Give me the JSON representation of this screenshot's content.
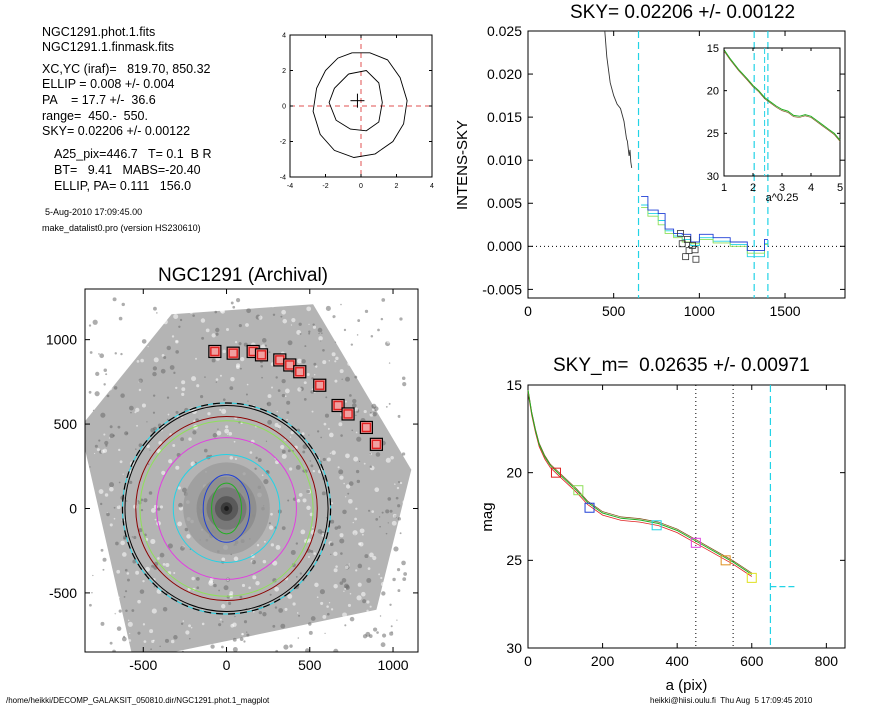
{
  "info": {
    "phot_file": "NGC1291.phot.1.fits",
    "mask_file": "NGC1291.1.finmask.fits",
    "xcyc": "XC,YC (iraf)=   819.70, 850.32",
    "ellip": "ELLIP = 0.008 +/- 0.004",
    "pa": "PA    = 17.7 +/-  36.6",
    "range": "range=  450.-  550.",
    "sky": "SKY= 0.02206 +/- 0.00122",
    "a25": "A25_pix=446.7   T= 0.1  B R",
    "bt": "BT=   9.41   MABS=-20.40",
    "ellip_pa": "ELLIP, PA= 0.111   156.0",
    "date": "5-Aug-2010 17:09:45.00",
    "program": "make_datalist0.pro (version HS230610)"
  },
  "footer": {
    "path": "/home/heikki/DECOMP_GALAKSIT_050810.dir/NGC1291.phot.1_magplot",
    "user": "heikki@hiisi.oulu.fi  Thu Aug  5 17:09:45 2010"
  },
  "colors": {
    "black": "#000000",
    "cyan": "#22d3e6",
    "blue": "#1f3fd6",
    "green": "#22b022",
    "lightgreen": "#8fe05a",
    "magenta": "#e040e0",
    "red": "#e02020",
    "darkred": "#8b0000",
    "orange": "#e09020",
    "pink": "#ff8080",
    "gray": "#808080"
  },
  "chart_data": [
    {
      "id": "center_plot",
      "type": "line",
      "xlim": [
        -4,
        4
      ],
      "ylim": [
        -4,
        4
      ],
      "xticks": [
        -4,
        -2,
        0,
        2,
        4
      ],
      "yticks": [
        -4,
        -2,
        0,
        2,
        4
      ],
      "crosshair_x": 0,
      "crosshair_y": 0,
      "center_marker": [
        -0.2,
        0.3
      ],
      "contours": [
        [
          [
            -0.5,
            3.0
          ],
          [
            0.5,
            3.0
          ],
          [
            1.5,
            2.6
          ],
          [
            2.2,
            1.6
          ],
          [
            2.6,
            0.3
          ],
          [
            2.4,
            -1.0
          ],
          [
            1.8,
            -2.0
          ],
          [
            0.8,
            -2.7
          ],
          [
            -0.4,
            -2.9
          ],
          [
            -1.5,
            -2.5
          ],
          [
            -2.3,
            -1.6
          ],
          [
            -2.7,
            -0.3
          ],
          [
            -2.5,
            1.0
          ],
          [
            -2.0,
            2.0
          ],
          [
            -1.3,
            2.7
          ],
          [
            -0.5,
            3.0
          ]
        ],
        [
          [
            -0.7,
            1.8
          ],
          [
            0.3,
            2.0
          ],
          [
            1.0,
            1.3
          ],
          [
            1.2,
            0.2
          ],
          [
            1.0,
            -0.9
          ],
          [
            0.3,
            -1.4
          ],
          [
            -0.6,
            -1.3
          ],
          [
            -1.4,
            -0.8
          ],
          [
            -1.8,
            0.2
          ],
          [
            -1.5,
            1.0
          ],
          [
            -0.7,
            1.8
          ]
        ]
      ]
    },
    {
      "id": "sky_profile",
      "type": "line",
      "title": "SKY= 0.02206 +/- 0.00122",
      "xlabel": "",
      "ylabel": "INTENS-SKY",
      "xlim": [
        0,
        1850
      ],
      "ylim": [
        -0.006,
        0.025
      ],
      "xticks": [
        0,
        500,
        1000,
        1500
      ],
      "yticks": [
        -0.005,
        0.0,
        0.005,
        0.01,
        0.015,
        0.02,
        0.025
      ],
      "ytick_labels": [
        "-0.005",
        "0.000",
        "0.005",
        "0.010",
        "0.015",
        "0.020",
        "0.025"
      ],
      "vlines": [
        645,
        1320,
        1400
      ],
      "intens_curve": [
        [
          448,
          0.025
        ],
        [
          460,
          0.022
        ],
        [
          480,
          0.019
        ],
        [
          500,
          0.0175
        ],
        [
          520,
          0.0165
        ],
        [
          540,
          0.016
        ],
        [
          560,
          0.0145
        ],
        [
          575,
          0.0125
        ],
        [
          580,
          0.0122
        ],
        [
          590,
          0.0105
        ],
        [
          595,
          0.0112
        ],
        [
          600,
          0.0098
        ],
        [
          605,
          0.0091
        ]
      ],
      "sky_steps_blue": [
        [
          660,
          0.0058
        ],
        [
          700,
          0.0042
        ],
        [
          760,
          0.0038
        ],
        [
          800,
          0.002
        ],
        [
          850,
          0.0015
        ],
        [
          900,
          0.0014
        ],
        [
          950,
          0.0005
        ],
        [
          1000,
          0.0014
        ],
        [
          1080,
          0.001
        ],
        [
          1180,
          0.0005
        ],
        [
          1280,
          -0.0005
        ],
        [
          1380,
          0.0008
        ]
      ],
      "sky_steps_green": [
        [
          660,
          0.0045
        ],
        [
          700,
          0.0035
        ],
        [
          760,
          0.0025
        ],
        [
          800,
          0.0015
        ],
        [
          850,
          0.001
        ],
        [
          900,
          0.0005
        ],
        [
          950,
          0.0003
        ],
        [
          1000,
          0.0008
        ],
        [
          1080,
          0.0004
        ],
        [
          1180,
          0.0
        ],
        [
          1280,
          -0.0008
        ],
        [
          1380,
          0.0002
        ]
      ],
      "sky_steps_cyan": [
        [
          660,
          0.0048
        ],
        [
          700,
          0.0038
        ],
        [
          760,
          0.003
        ],
        [
          800,
          0.0018
        ],
        [
          850,
          0.0012
        ],
        [
          900,
          0.0008
        ],
        [
          950,
          0.0001
        ],
        [
          1000,
          0.001
        ],
        [
          1080,
          0.0006
        ],
        [
          1180,
          0.0002
        ],
        [
          1280,
          -0.0012
        ],
        [
          1380,
          0.0003
        ]
      ],
      "square_points": [
        [
          890,
          0.0015
        ],
        [
          900,
          0.0003
        ],
        [
          920,
          -0.0012
        ],
        [
          930,
          0.0008
        ],
        [
          940,
          -0.0005
        ],
        [
          960,
          0.0001
        ],
        [
          975,
          -0.0004
        ],
        [
          980,
          -0.0015
        ]
      ],
      "inset": {
        "xlabel": "a^0.25",
        "xlim": [
          1,
          5
        ],
        "ylim": [
          15,
          30
        ],
        "xticks": [
          1,
          2,
          3,
          4,
          5
        ],
        "yticks": [
          15,
          20,
          25,
          30
        ],
        "vline": 2.4,
        "curve": [
          [
            1.0,
            15.2
          ],
          [
            1.2,
            16.2
          ],
          [
            1.5,
            17.5
          ],
          [
            1.8,
            18.6
          ],
          [
            2.0,
            19.4
          ],
          [
            2.2,
            20.0
          ],
          [
            2.4,
            20.8
          ],
          [
            2.6,
            21.3
          ],
          [
            2.8,
            21.8
          ],
          [
            3.0,
            22.2
          ],
          [
            3.2,
            22.4
          ],
          [
            3.4,
            22.9
          ],
          [
            3.6,
            23.0
          ],
          [
            3.8,
            22.8
          ],
          [
            4.0,
            23.0
          ],
          [
            4.2,
            23.5
          ],
          [
            4.4,
            24.0
          ],
          [
            4.6,
            24.5
          ],
          [
            4.8,
            25.0
          ],
          [
            5.0,
            25.8
          ]
        ]
      }
    },
    {
      "id": "archival_image",
      "type": "scatter",
      "title": "NGC1291 (Archival)",
      "xlim": [
        -850,
        1150
      ],
      "ylim": [
        -850,
        1300
      ],
      "xticks": [
        -500,
        0,
        500,
        1000
      ],
      "yticks": [
        -500,
        0,
        500,
        1000
      ],
      "boxes": [
        [
          -70,
          930
        ],
        [
          40,
          920
        ],
        [
          160,
          930
        ],
        [
          210,
          910
        ],
        [
          320,
          880
        ],
        [
          380,
          850
        ],
        [
          440,
          810
        ],
        [
          560,
          730
        ],
        [
          670,
          610
        ],
        [
          730,
          560
        ],
        [
          840,
          480
        ],
        [
          900,
          380
        ]
      ],
      "ellipses": [
        {
          "r": 140,
          "ry": 200,
          "color": "#1f3fd6"
        },
        {
          "r": 90,
          "ry": 150,
          "color": "#22b022"
        },
        {
          "r": 320,
          "ry": 320,
          "color": "#22d3e6"
        },
        {
          "r": 420,
          "ry": 420,
          "color": "#e040e0"
        },
        {
          "r": 520,
          "ry": 520,
          "color": "#8fe05a"
        },
        {
          "r": 545,
          "ry": 545,
          "color": "#8b0000"
        },
        {
          "r": 610,
          "ry": 610,
          "color": "#000000"
        },
        {
          "r": 625,
          "ry": 625,
          "color": "#22d3e6"
        }
      ]
    },
    {
      "id": "mag_profile",
      "type": "line",
      "title": "SKY_m=  0.02635 +/- 0.00971",
      "xlabel": "a (pix)",
      "ylabel": "mag",
      "xlim": [
        0,
        850
      ],
      "ylim": [
        15,
        30
      ],
      "xticks": [
        0,
        200,
        400,
        600,
        800
      ],
      "yticks": [
        15,
        20,
        25,
        30
      ],
      "vlines_dotted": [
        450,
        550
      ],
      "vline_cyan": 650,
      "hline_cyan_y": 26.5,
      "hline_cyan_x": [
        650,
        720
      ],
      "curve": [
        [
          0,
          15.3
        ],
        [
          10,
          16.6
        ],
        [
          20,
          17.6
        ],
        [
          30,
          18.4
        ],
        [
          45,
          19.1
        ],
        [
          60,
          19.6
        ],
        [
          80,
          20.0
        ],
        [
          100,
          20.4
        ],
        [
          130,
          21.0
        ],
        [
          160,
          21.7
        ],
        [
          200,
          22.3
        ],
        [
          250,
          22.6
        ],
        [
          300,
          22.7
        ],
        [
          350,
          22.9
        ],
        [
          400,
          23.3
        ],
        [
          450,
          23.9
        ],
        [
          500,
          24.5
        ],
        [
          550,
          25.1
        ],
        [
          600,
          25.8
        ]
      ],
      "squares": [
        {
          "x": 75,
          "y": 20.0,
          "color": "#e02020"
        },
        {
          "x": 135,
          "y": 21.0,
          "color": "#8fe05a"
        },
        {
          "x": 165,
          "y": 22.0,
          "color": "#1f3fd6"
        },
        {
          "x": 345,
          "y": 23.0,
          "color": "#22d3e6"
        },
        {
          "x": 450,
          "y": 24.0,
          "color": "#e040e0"
        },
        {
          "x": 530,
          "y": 25.0,
          "color": "#e09020"
        },
        {
          "x": 600,
          "y": 26.0,
          "color": "#e0e020"
        }
      ]
    }
  ]
}
